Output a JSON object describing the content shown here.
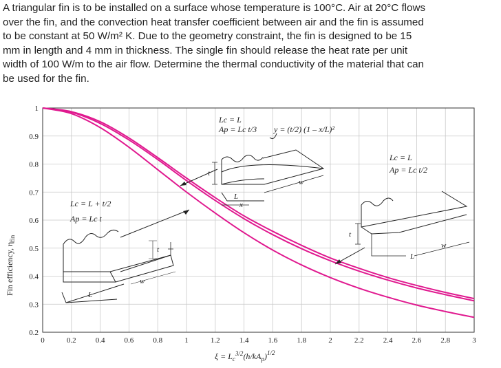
{
  "problem": {
    "text": "A triangular fin is to be installed on a surface whose temperature is 100°C. Air at 20°C flows\nover the fin, and the convection heat transfer coefficient between air and the fin is assumed\nto be constant at 50 W/m² K. Due to the geometry constraint, the fin is designed to be 15\nmm in length and 4 mm in thickness. The single fin should release the heat rate per unit\nwidth of 100 W/m to the air flow. Determine the thermal conductivity of the material that can\nbe used for the fin."
  },
  "chart_data": {
    "type": "line",
    "xlabel": "ξ = Lc^3/2 (h/kAp)^1/2",
    "ylabel": "Fin efficiency, ηfin",
    "xlim": [
      0,
      3
    ],
    "ylim": [
      0.2,
      1
    ],
    "x_ticks": [
      "0",
      "0.2",
      "0.4",
      "0.6",
      "0.8",
      "1",
      "1.2",
      "1.4",
      "1.6",
      "1.8",
      "2",
      "2.2",
      "2.4",
      "2.6",
      "2.8",
      "3"
    ],
    "y_ticks": [
      "0.2",
      "0.3",
      "0.4",
      "0.5",
      "0.6",
      "0.7",
      "0.8",
      "0.9",
      "1"
    ],
    "grid": true,
    "line_color": "#e0198f",
    "x": [
      0,
      0.2,
      0.4,
      0.6,
      0.8,
      1.0,
      1.2,
      1.4,
      1.6,
      1.8,
      2.0,
      2.2,
      2.4,
      2.6,
      2.8,
      3.0
    ],
    "series": [
      {
        "values": [
          1.0,
          0.987,
          0.951,
          0.893,
          0.823,
          0.75,
          0.68,
          0.615,
          0.56,
          0.51,
          0.465,
          0.428,
          0.395,
          0.367,
          0.342,
          0.32
        ]
      },
      {
        "values": [
          1.0,
          0.985,
          0.945,
          0.886,
          0.816,
          0.741,
          0.67,
          0.605,
          0.548,
          0.498,
          0.455,
          0.418,
          0.386,
          0.358,
          0.334,
          0.312
        ]
      },
      {
        "values": [
          1.0,
          0.98,
          0.93,
          0.86,
          0.78,
          0.7,
          0.625,
          0.555,
          0.493,
          0.44,
          0.395,
          0.357,
          0.325,
          0.297,
          0.274,
          0.253
        ]
      }
    ],
    "annotations": {
      "tri_lc": "Lc = L",
      "tri_ap": "Ap = Lc t/3",
      "tri_profile": "y = (t/2) (1 – x/L)²",
      "rect_lc": "Lc = L + t/2",
      "rect_ap": "Ap = Lc t",
      "right_lc": "Lc = L",
      "right_ap": "Ap = Lc t/2",
      "dim_t": "t",
      "dim_w": "w",
      "dim_l": "L",
      "dim_x": "x"
    }
  }
}
